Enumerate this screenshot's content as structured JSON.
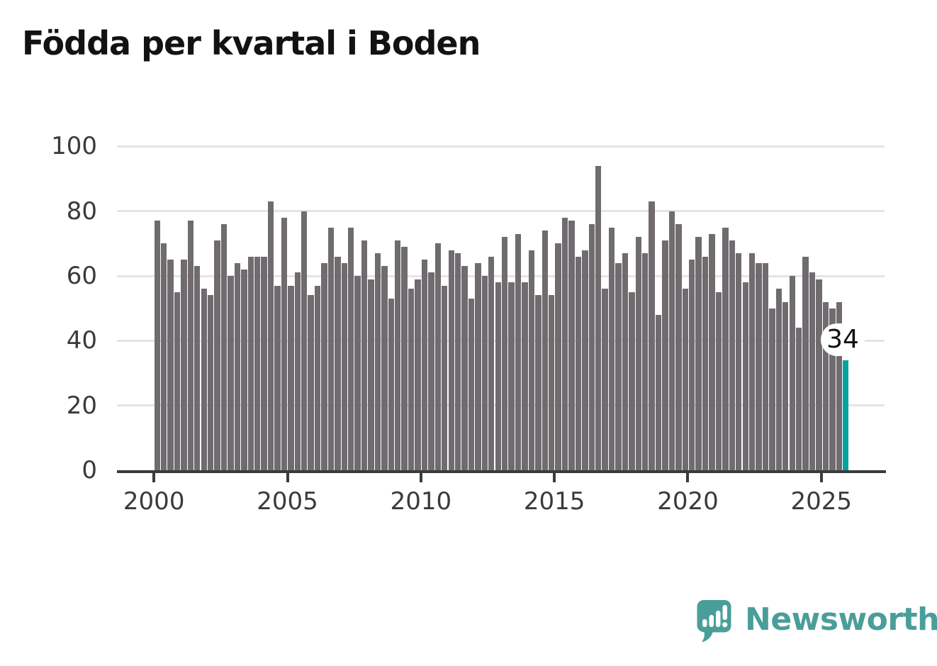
{
  "title": "Födda per kvartal i Boden",
  "chart_data": {
    "type": "bar",
    "title": "Födda per kvartal i Boden",
    "x_start_year": 2000,
    "points_per_year": 4,
    "x_tick_labels": [
      "2000",
      "2005",
      "2010",
      "2015",
      "2020",
      "2025"
    ],
    "y_tick_labels": [
      "0",
      "20",
      "40",
      "60",
      "80",
      "100"
    ],
    "ylim": [
      0,
      100
    ],
    "grid": "horizontal-only",
    "legend": "none",
    "bar_color": "#6f6b6f",
    "highlight_color": "#00a49c",
    "highlight_index": 103,
    "highlight_label": "34",
    "values": [
      77,
      70,
      65,
      55,
      65,
      77,
      63,
      56,
      54,
      71,
      76,
      60,
      64,
      62,
      66,
      66,
      66,
      83,
      57,
      78,
      57,
      61,
      80,
      54,
      57,
      64,
      75,
      66,
      64,
      75,
      60,
      71,
      59,
      67,
      63,
      53,
      71,
      69,
      56,
      59,
      65,
      61,
      70,
      57,
      68,
      67,
      63,
      53,
      64,
      60,
      66,
      58,
      72,
      58,
      73,
      58,
      68,
      54,
      74,
      54,
      70,
      78,
      77,
      66,
      68,
      76,
      94,
      56,
      75,
      64,
      67,
      55,
      72,
      67,
      83,
      48,
      71,
      80,
      76,
      56,
      65,
      72,
      66,
      73,
      55,
      75,
      71,
      67,
      58,
      67,
      64,
      64,
      50,
      56,
      52,
      60,
      44,
      66,
      61,
      59,
      52,
      50,
      52,
      34
    ]
  },
  "branding": {
    "name": "Newsworthy",
    "color": "#4a9e9a",
    "icon": "speech-bubble-bar-chart-icon"
  }
}
